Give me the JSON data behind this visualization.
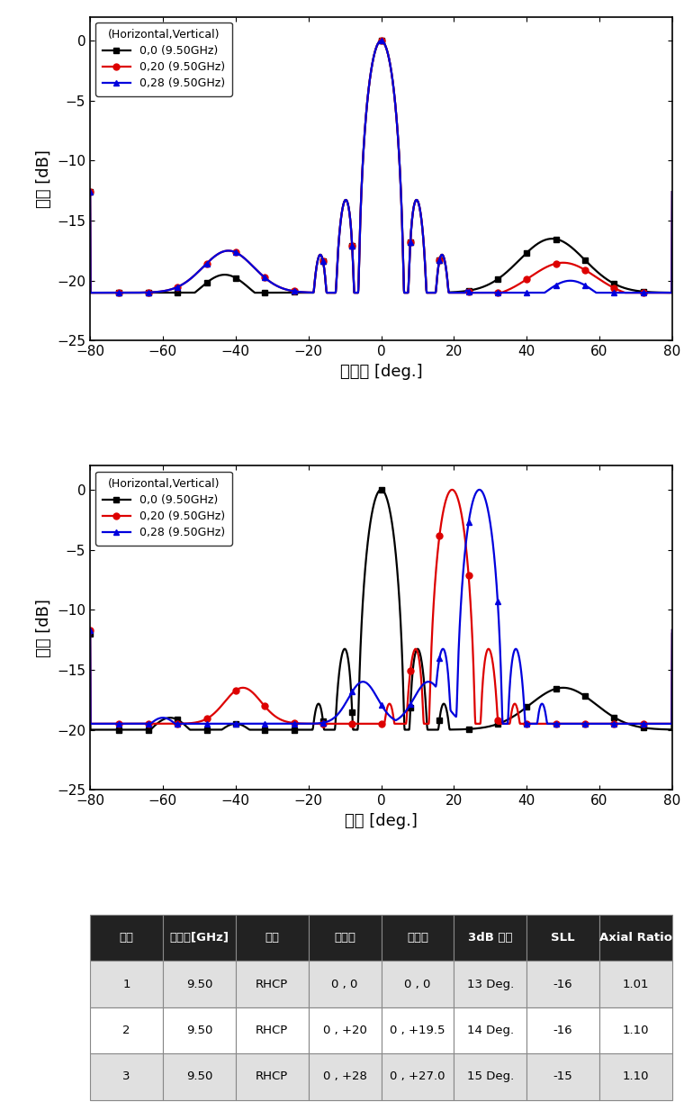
{
  "legend_title": "(Horizontal,Vertical)",
  "series_labels": [
    "0,0 (9.50GHz)",
    "0,20 (9.50GHz)",
    "0,28 (9.50GHz)"
  ],
  "series_colors": [
    "#000000",
    "#dd0000",
    "#0000dd"
  ],
  "series_markers": [
    "s",
    "o",
    "^"
  ],
  "plot1_xlabel": "방위각 [deg.]",
  "plot2_xlabel": "고각 [deg.]",
  "ylabel": "이득 [dB]",
  "xlim": [
    -80,
    80
  ],
  "ylim": [
    -25,
    2
  ],
  "yticks": [
    0,
    -5,
    -10,
    -15,
    -20,
    -25
  ],
  "xticks": [
    -80,
    -60,
    -40,
    -20,
    0,
    20,
    40,
    60,
    80
  ],
  "table_headers": [
    "구분",
    "주파수[GHz]",
    "편파",
    "조향각",
    "측정각",
    "3dB 빔폭",
    "SLL",
    "Axial Ratio"
  ],
  "table_rows": [
    [
      "1",
      "9.50",
      "RHCP",
      "0 , 0",
      "0 , 0",
      "13 Deg.",
      "-16",
      "1.01"
    ],
    [
      "2",
      "9.50",
      "RHCP",
      "0 , +20",
      "0 , +19.5",
      "14 Deg.",
      "-16",
      "1.10"
    ],
    [
      "3",
      "9.50",
      "RHCP",
      "0 , +28",
      "0 , +27.0",
      "15 Deg.",
      "-15",
      "1.10"
    ]
  ],
  "table_header_bg": "#222222",
  "table_header_fg": "#ffffff",
  "table_row1_bg": "#e0e0e0",
  "table_row2_bg": "#ffffff"
}
